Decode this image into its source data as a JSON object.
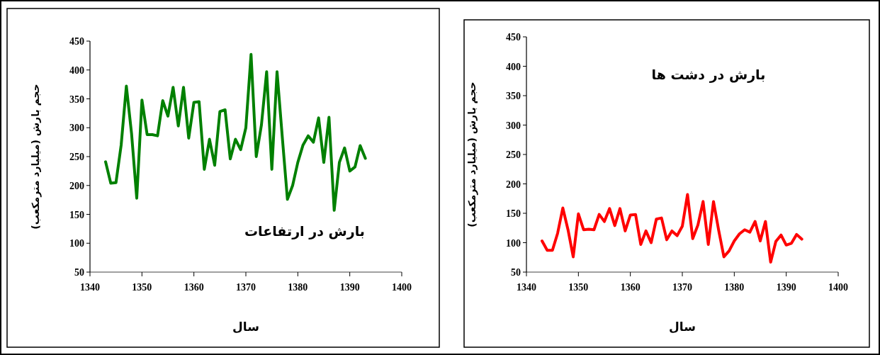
{
  "chart_data": [
    {
      "type": "line",
      "title": "بارش در ارتفاعات",
      "xlabel": "سال",
      "ylabel": "حجم بارش (میلیارد مترمکعب)",
      "xlim": [
        1340,
        1400
      ],
      "xticks": [
        1340,
        1350,
        1360,
        1370,
        1380,
        1390,
        1400
      ],
      "ylim": [
        50,
        450
      ],
      "yticks": [
        50,
        100,
        150,
        200,
        250,
        300,
        350,
        400,
        450
      ],
      "grid": false,
      "marker": "none",
      "line_style": "solid",
      "x": [
        1343,
        1344,
        1345,
        1346,
        1347,
        1348,
        1349,
        1350,
        1351,
        1352,
        1353,
        1354,
        1355,
        1356,
        1357,
        1358,
        1359,
        1360,
        1361,
        1362,
        1363,
        1364,
        1365,
        1366,
        1367,
        1368,
        1369,
        1370,
        1371,
        1372,
        1373,
        1374,
        1375,
        1376,
        1377,
        1378,
        1379,
        1380,
        1381,
        1382,
        1383,
        1384,
        1385,
        1386,
        1387,
        1388,
        1389,
        1390,
        1391,
        1392,
        1393
      ],
      "series": [
        {
          "color": "#008000",
          "values": [
            241,
            204,
            205,
            270,
            372,
            290,
            178,
            348,
            288,
            288,
            286,
            347,
            320,
            370,
            303,
            370,
            282,
            344,
            345,
            228,
            280,
            235,
            328,
            331,
            246,
            280,
            262,
            300,
            427,
            250,
            305,
            397,
            228,
            397,
            285,
            176,
            200,
            240,
            270,
            286,
            275,
            317,
            240,
            318,
            157,
            240,
            265,
            225,
            232,
            269,
            247
          ]
        }
      ]
    },
    {
      "type": "line",
      "title": "بارش در دشت ها",
      "xlabel": "سال",
      "ylabel": "حجم بارش (میلیارد مترمکعب)",
      "xlim": [
        1340,
        1400
      ],
      "xticks": [
        1340,
        1350,
        1360,
        1370,
        1380,
        1390,
        1400
      ],
      "ylim": [
        50,
        450
      ],
      "yticks": [
        50,
        100,
        150,
        200,
        250,
        300,
        350,
        400,
        450
      ],
      "grid": false,
      "marker": "none",
      "line_style": "solid",
      "x": [
        1343,
        1344,
        1345,
        1346,
        1347,
        1348,
        1349,
        1350,
        1351,
        1352,
        1353,
        1354,
        1355,
        1356,
        1357,
        1358,
        1359,
        1360,
        1361,
        1362,
        1363,
        1364,
        1365,
        1366,
        1367,
        1368,
        1369,
        1370,
        1371,
        1372,
        1373,
        1374,
        1375,
        1376,
        1377,
        1378,
        1379,
        1380,
        1381,
        1382,
        1383,
        1384,
        1385,
        1386,
        1387,
        1388,
        1389,
        1390,
        1391,
        1392,
        1393
      ],
      "series": [
        {
          "color": "#ff0000",
          "values": [
            103,
            87,
            87,
            116,
            159,
            122,
            76,
            149,
            122,
            123,
            122,
            148,
            136,
            158,
            129,
            158,
            120,
            147,
            148,
            97,
            120,
            100,
            140,
            142,
            105,
            120,
            112,
            128,
            182,
            107,
            130,
            170,
            97,
            170,
            121,
            76,
            86,
            103,
            115,
            122,
            118,
            136,
            103,
            136,
            67,
            102,
            113,
            96,
            99,
            114,
            106
          ]
        }
      ]
    }
  ]
}
